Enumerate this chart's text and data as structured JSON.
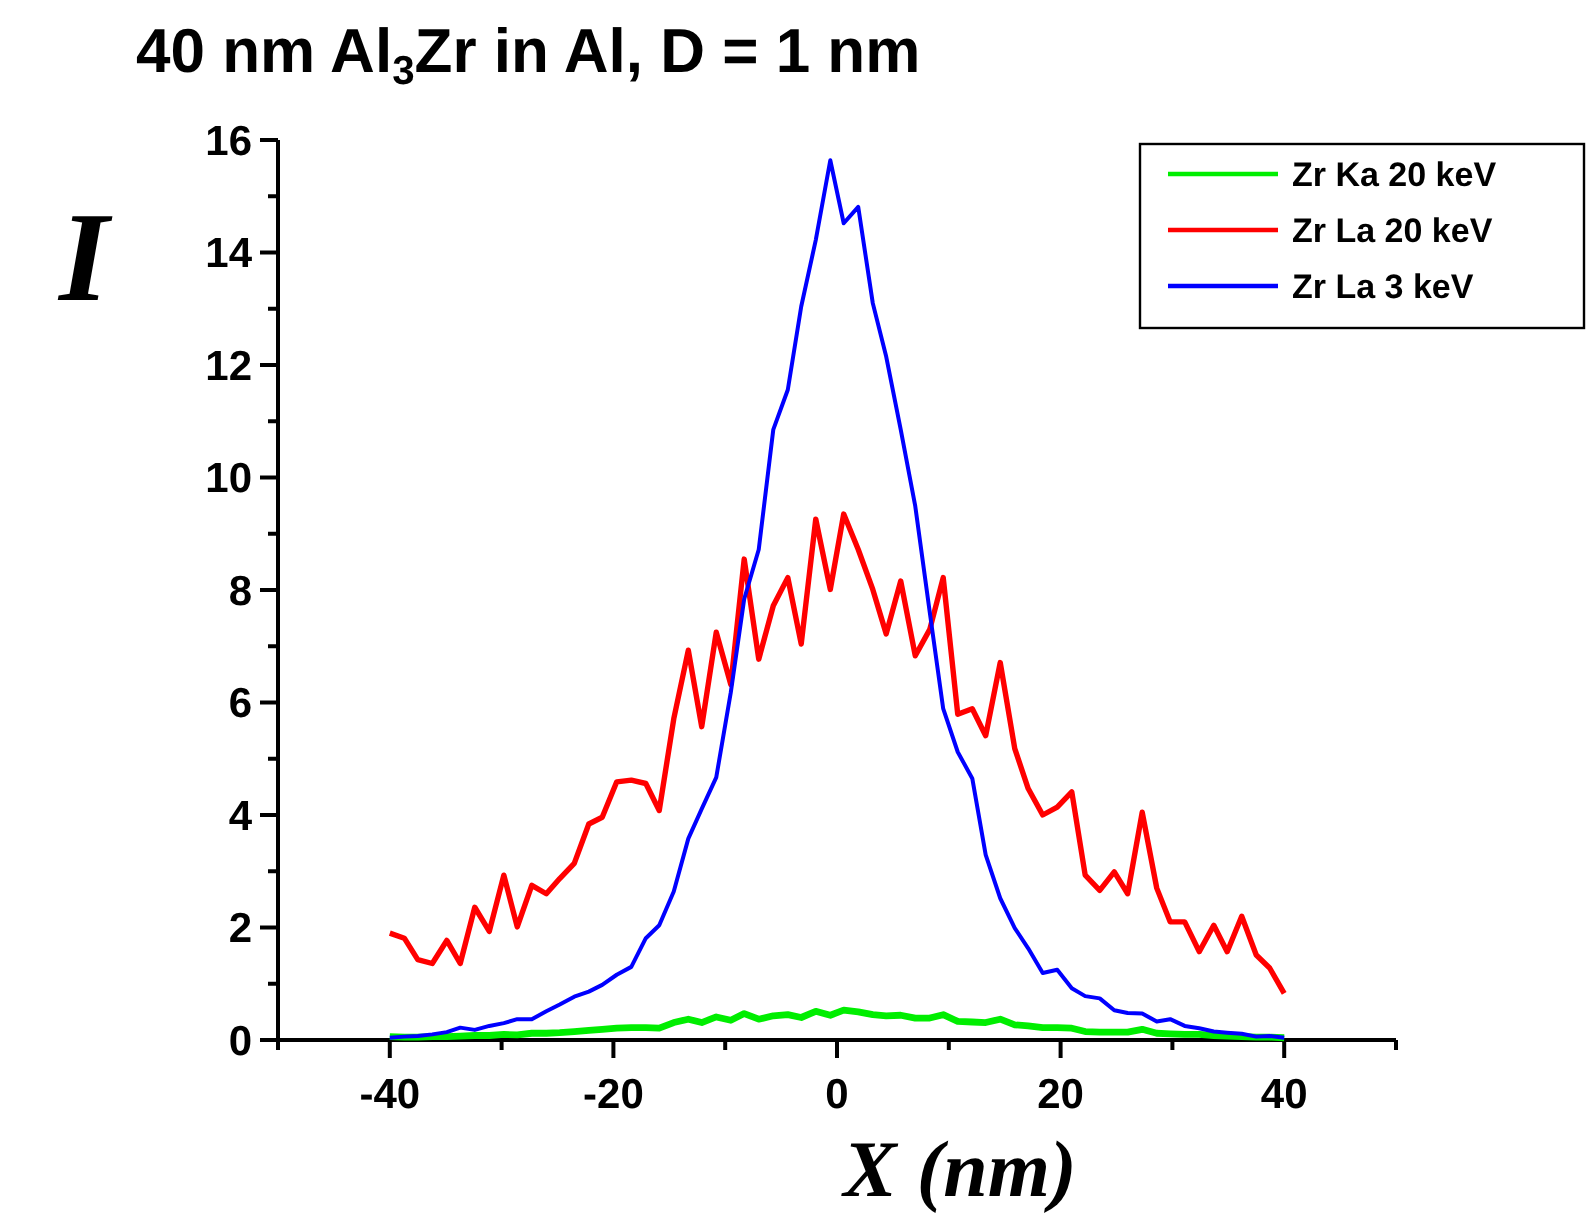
{
  "chart_data": {
    "type": "line",
    "title": "40 nm Al$_{3}$Zr in Al, D = 1 nm",
    "xlabel": "X (nm)",
    "ylabel": "I",
    "x": [
      -40,
      -38.7,
      -37.5,
      -36.2,
      -34.9,
      -33.7,
      -32.4,
      -31.1,
      -29.8,
      -28.6,
      -27.3,
      -26,
      -24.8,
      -23.5,
      -22.2,
      -21,
      -19.7,
      -18.4,
      -17.1,
      -15.9,
      -14.6,
      -13.3,
      -12.1,
      -10.8,
      -9.5,
      -8.3,
      -7,
      -5.7,
      -4.4,
      -3.2,
      -1.9,
      -0.6,
      0.6,
      1.9,
      3.2,
      4.4,
      5.7,
      7,
      8.3,
      9.5,
      10.8,
      12.1,
      13.3,
      14.6,
      15.9,
      17.1,
      18.4,
      19.7,
      21,
      22.2,
      23.5,
      24.8,
      26,
      27.3,
      28.6,
      29.8,
      31.1,
      32.4,
      33.7,
      34.9,
      36.2,
      37.5,
      38.7,
      40
    ],
    "series": [
      {
        "name": "Zr Ka 20 keV",
        "color": "#00ee00",
        "values": [
          0.06,
          0.05,
          0.05,
          0.06,
          0.06,
          0.07,
          0.08,
          0.08,
          0.1,
          0.09,
          0.12,
          0.12,
          0.13,
          0.15,
          0.17,
          0.19,
          0.21,
          0.22,
          0.22,
          0.21,
          0.31,
          0.37,
          0.31,
          0.41,
          0.35,
          0.47,
          0.37,
          0.43,
          0.45,
          0.4,
          0.51,
          0.44,
          0.53,
          0.5,
          0.45,
          0.43,
          0.44,
          0.39,
          0.39,
          0.45,
          0.33,
          0.32,
          0.31,
          0.37,
          0.27,
          0.25,
          0.22,
          0.22,
          0.21,
          0.15,
          0.14,
          0.14,
          0.14,
          0.19,
          0.12,
          0.11,
          0.1,
          0.1,
          0.08,
          0.07,
          0.06,
          0.05,
          0.05,
          0.04
        ]
      },
      {
        "name": "Zr La 20 keV",
        "color": "#ff0000",
        "values": [
          1.9,
          1.81,
          1.43,
          1.36,
          1.77,
          1.36,
          2.36,
          1.93,
          2.93,
          2.01,
          2.75,
          2.6,
          2.87,
          3.14,
          3.84,
          3.96,
          4.59,
          4.62,
          4.56,
          4.08,
          5.71,
          6.93,
          5.57,
          7.25,
          6.32,
          8.55,
          6.77,
          7.72,
          8.22,
          7.04,
          9.26,
          8.01,
          9.35,
          8.72,
          8.01,
          7.22,
          8.16,
          6.83,
          7.3,
          8.22,
          5.79,
          5.89,
          5.41,
          6.71,
          5.18,
          4.47,
          4,
          4.14,
          4.41,
          2.93,
          2.66,
          2.99,
          2.6,
          4.05,
          2.7,
          2.1,
          2.1,
          1.57,
          2.04,
          1.57,
          2.2,
          1.51,
          1.28,
          0.83
        ]
      },
      {
        "name": "Zr La 3 keV",
        "color": "#0000ff",
        "values": [
          0.04,
          0.06,
          0.07,
          0.1,
          0.14,
          0.22,
          0.18,
          0.25,
          0.3,
          0.37,
          0.37,
          0.51,
          0.63,
          0.77,
          0.86,
          0.98,
          1.16,
          1.3,
          1.81,
          2.04,
          2.64,
          3.58,
          4.11,
          4.67,
          6.18,
          7.84,
          8.72,
          10.85,
          11.56,
          13.04,
          14.22,
          15.64,
          14.52,
          14.81,
          13.1,
          12.15,
          10.85,
          9.49,
          7.6,
          5.89,
          5.12,
          4.65,
          3.29,
          2.52,
          1.99,
          1.63,
          1.19,
          1.25,
          0.92,
          0.78,
          0.74,
          0.53,
          0.48,
          0.47,
          0.33,
          0.37,
          0.25,
          0.21,
          0.15,
          0.13,
          0.11,
          0.06,
          0.07,
          0.04
        ]
      }
    ],
    "xlim": [
      -50,
      50
    ],
    "xticks": [
      {
        "value": -50,
        "label": null
      },
      -40,
      {
        "value": -30,
        "label": null
      },
      -20,
      {
        "value": -10,
        "label": null
      },
      0,
      {
        "value": 10,
        "label": null
      },
      20,
      {
        "value": 30,
        "label": null
      },
      40,
      {
        "value": 50,
        "label": null
      }
    ],
    "ylim": [
      0,
      16
    ],
    "yticks": [
      0,
      {
        "value": 1,
        "label": null
      },
      2,
      {
        "value": 3,
        "label": null
      },
      4,
      {
        "value": 5,
        "label": null
      },
      6,
      {
        "value": 7,
        "label": null
      },
      8,
      {
        "value": 9,
        "label": null
      },
      10,
      {
        "value": 11,
        "label": null
      },
      12,
      {
        "value": 13,
        "label": null
      },
      14,
      {
        "value": 15,
        "label": null
      },
      16
    ],
    "grid": false,
    "legend": "top right",
    "marker": "none",
    "line_style": "solid"
  }
}
